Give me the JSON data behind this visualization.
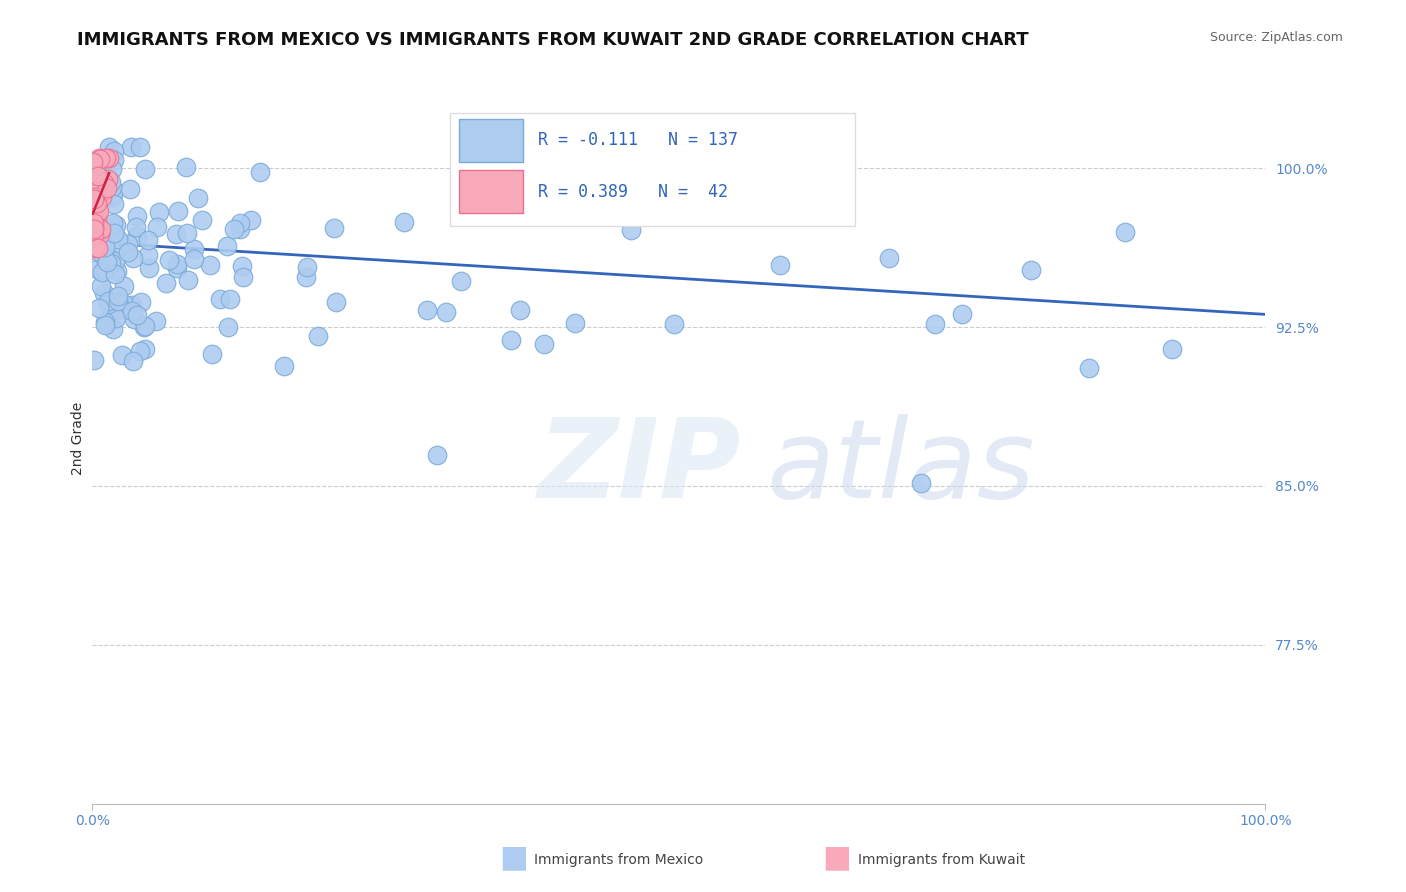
{
  "title": "IMMIGRANTS FROM MEXICO VS IMMIGRANTS FROM KUWAIT 2ND GRADE CORRELATION CHART",
  "source": "Source: ZipAtlas.com",
  "ylabel": "2nd Grade",
  "x_min": 0.0,
  "x_max": 1.0,
  "y_min": 0.7,
  "y_max": 1.045,
  "yticks": [
    0.775,
    0.85,
    0.925,
    1.0
  ],
  "ytick_labels": [
    "77.5%",
    "85.0%",
    "92.5%",
    "100.0%"
  ],
  "xtick_labels": [
    "0.0%",
    "100.0%"
  ],
  "legend_labels": [
    "Immigrants from Mexico",
    "Immigrants from Kuwait"
  ],
  "R_mexico": -0.111,
  "N_mexico": 137,
  "R_kuwait": 0.389,
  "N_kuwait": 42,
  "mexico_color": "#aeccf0",
  "mexico_edge": "#7aaad8",
  "kuwait_color": "#f8aabb",
  "kuwait_edge": "#e87090",
  "trend_mexico_color": "#3366bb",
  "trend_kuwait_color": "#cc2244",
  "background_color": "#ffffff",
  "title_fontsize": 13,
  "axis_label_fontsize": 10,
  "tick_fontsize": 10,
  "legend_fontsize": 12
}
